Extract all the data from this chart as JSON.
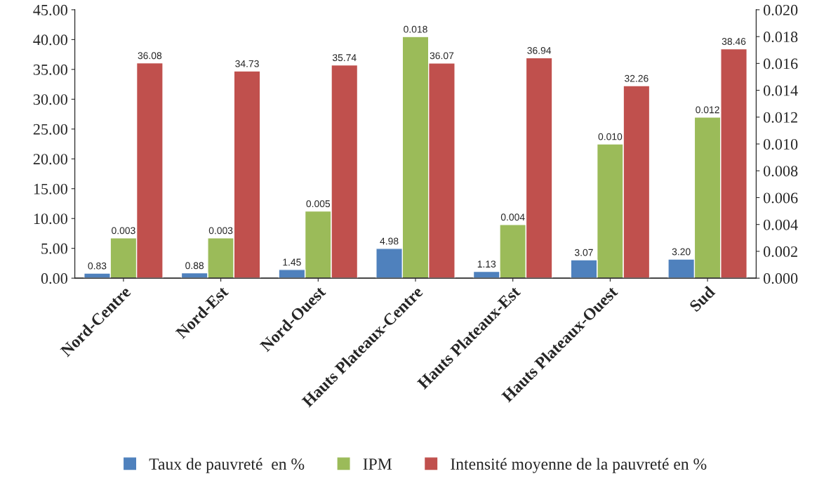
{
  "chart_data": {
    "type": "bar",
    "categories": [
      "Nord-Centre",
      "Nord-Est",
      "Nord-Ouest",
      "Hauts Plateaux-Centre",
      "Hauts Plateaux-Est",
      "Hauts Plateaux-Ouest",
      "Sud"
    ],
    "series": [
      {
        "name": "Taux de pauvreté  en %",
        "color": "#4f81bd",
        "values": [
          0.83,
          0.88,
          1.45,
          4.98,
          1.13,
          3.07,
          3.2
        ],
        "value_labels": [
          "0.83",
          "0.88",
          "1.45",
          "4.98",
          "1.13",
          "3.07",
          "3.20"
        ]
      },
      {
        "name": "IPM",
        "color": "#9bbb59",
        "axis": "y2",
        "values": [
          0.003,
          0.003,
          0.005,
          0.018,
          0.004,
          0.01,
          0.012
        ],
        "value_labels": [
          "0.003",
          "0.003",
          "0.005",
          "0.018",
          "0.004",
          "0.010",
          "0.012"
        ]
      },
      {
        "name": "Intensité moyenne de la pauvreté en %",
        "color": "#c0504d",
        "values": [
          36.08,
          34.73,
          35.74,
          36.07,
          36.94,
          32.26,
          38.46
        ],
        "value_labels": [
          "36.08",
          "34.73",
          "35.74",
          "36.07",
          "36.94",
          "32.26",
          "38.46"
        ]
      }
    ],
    "ylim": [
      0,
      45
    ],
    "yticks": [
      {
        "value": 0,
        "label": "0.00"
      },
      {
        "value": 5,
        "label": "5.00"
      },
      {
        "value": 10,
        "label": "10.00"
      },
      {
        "value": 15,
        "label": "15.00"
      },
      {
        "value": 20,
        "label": "20.00"
      },
      {
        "value": 25,
        "label": "25.00"
      },
      {
        "value": 30,
        "label": "30.00"
      },
      {
        "value": 35,
        "label": "35.00"
      },
      {
        "value": 40,
        "label": "40.00"
      },
      {
        "value": 45,
        "label": "45.00"
      }
    ],
    "y2lim": [
      0,
      0.02
    ],
    "y2ticks": [
      {
        "value": 0,
        "label": "0.000"
      },
      {
        "value": 0.002,
        "label": "0.002"
      },
      {
        "value": 0.004,
        "label": "0.004"
      },
      {
        "value": 0.006,
        "label": "0.006"
      },
      {
        "value": 0.008,
        "label": "0.008"
      },
      {
        "value": 0.01,
        "label": "0.010"
      },
      {
        "value": 0.012,
        "label": "0.012"
      },
      {
        "value": 0.014,
        "label": "0.014"
      },
      {
        "value": 0.016,
        "label": "0.016"
      },
      {
        "value": 0.018,
        "label": "0.018"
      },
      {
        "value": 0.02,
        "label": "0.020"
      }
    ],
    "grid": false,
    "legend": "bottom"
  }
}
